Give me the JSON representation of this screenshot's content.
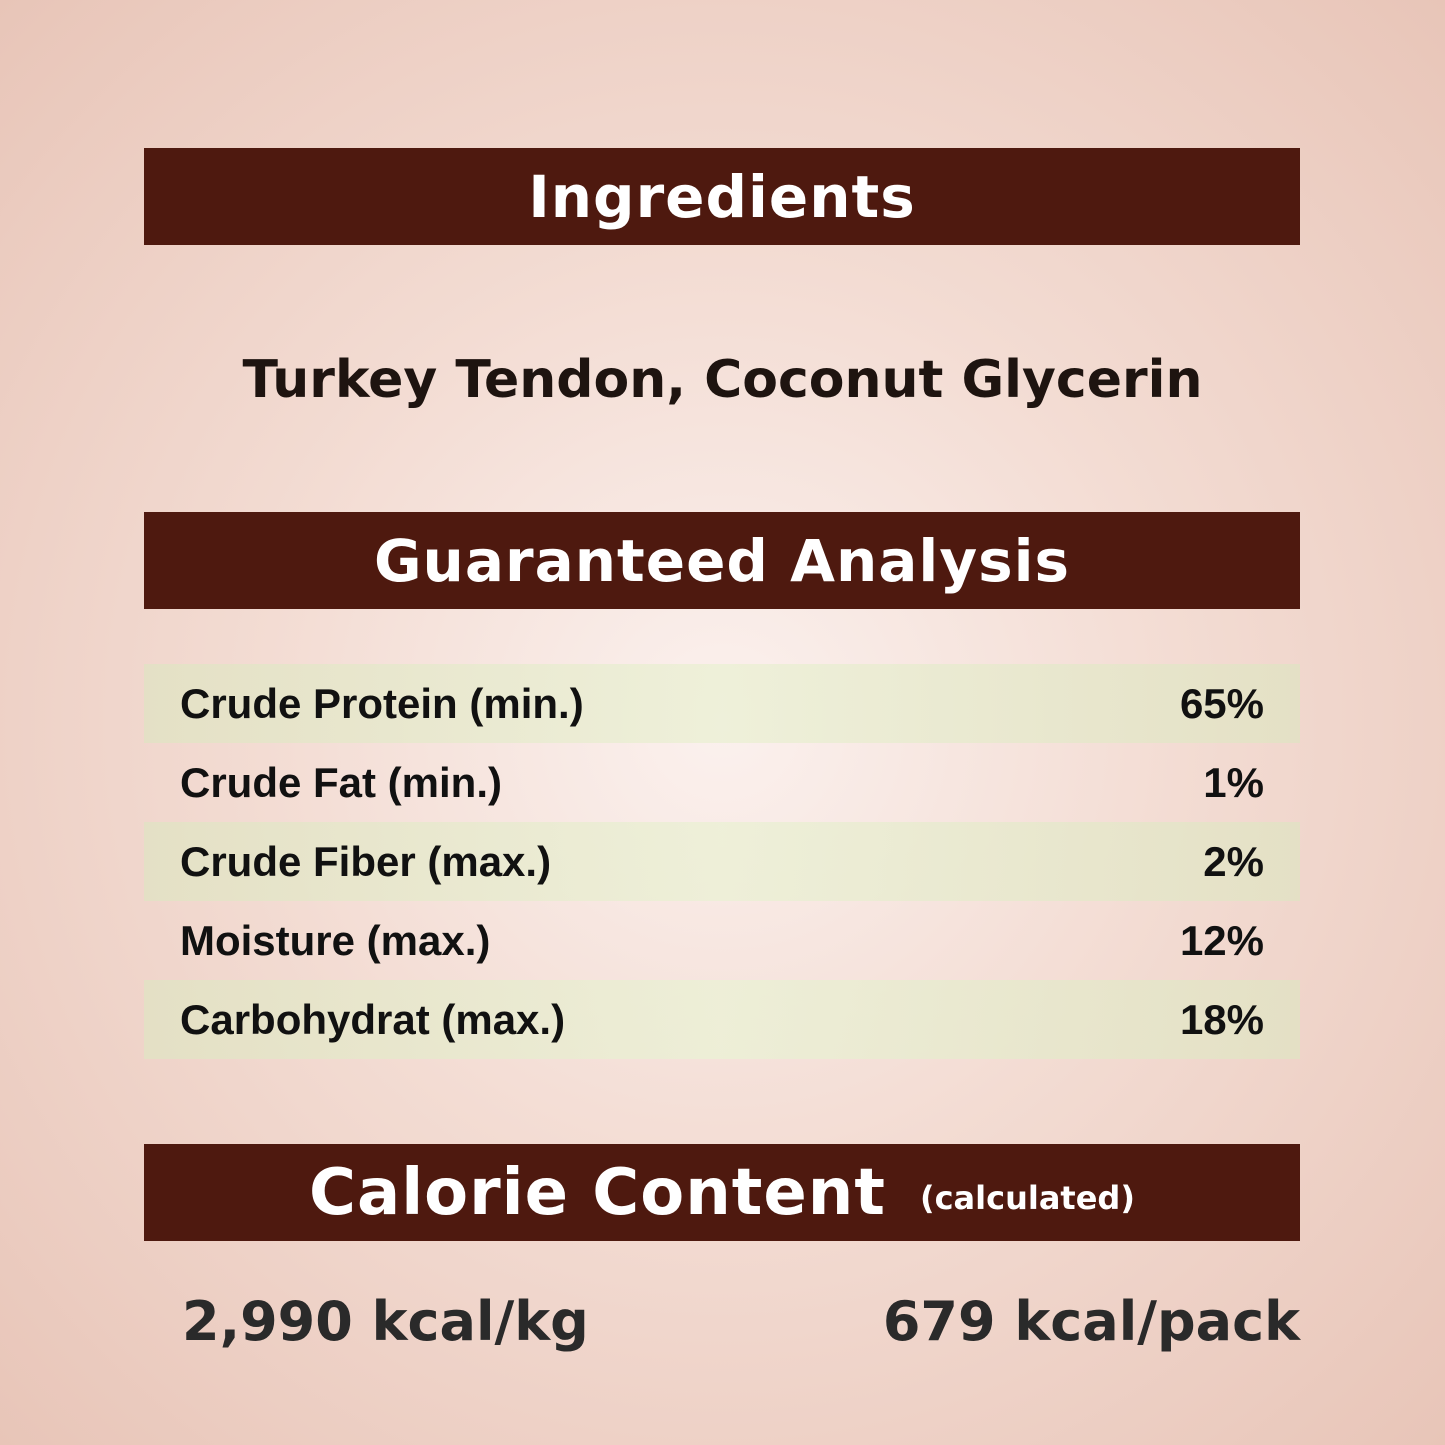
{
  "ingredients": {
    "title": "Ingredients",
    "text": "Turkey Tendon, Coconut Glycerin"
  },
  "analysis": {
    "title": "Guaranteed Analysis",
    "rows": [
      {
        "label": "Crude Protein (min.)",
        "value": "65%"
      },
      {
        "label": "Crude Fat (min.)",
        "value": "1%"
      },
      {
        "label": "Crude Fiber (max.)",
        "value": "2%"
      },
      {
        "label": "Moisture (max.)",
        "value": "12%"
      },
      {
        "label": "Carbohydrat (max.)",
        "value": "18%"
      }
    ]
  },
  "calorie": {
    "title": "Calorie Content",
    "subtitle": "(calculated)",
    "per_kg": "2,990 kcal/kg",
    "per_pack": "679 kcal/pack"
  },
  "colors": {
    "header_bar": "#4e190f",
    "row_shade": "#e4e4c8"
  }
}
